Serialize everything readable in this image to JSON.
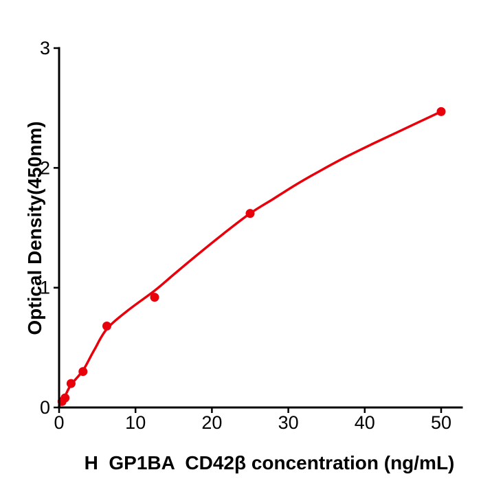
{
  "figure": {
    "background": "#ffffff",
    "axis_color": "#000000",
    "accent_red": "#e8000b"
  },
  "chart_data": {
    "type": "scatter",
    "title": "",
    "xlabel": "H  GP1BA  CD42β concentration (ng/mL)",
    "ylabel": "Optical Density(450nm)",
    "xlim": [
      0,
      52.7
    ],
    "ylim": [
      0,
      3
    ],
    "x_ticks": [
      0,
      10,
      20,
      30,
      40,
      50
    ],
    "y_ticks": [
      0,
      1,
      2,
      3
    ],
    "grid": false,
    "legend_position": "none",
    "series": [
      {
        "name": "standard-data-points",
        "type": "scatter",
        "color": "#e8000b",
        "x": [
          0.39,
          0.78,
          1.5625,
          3.125,
          6.25,
          12.5,
          25,
          50
        ],
        "y": [
          0.05,
          0.08,
          0.2,
          0.3,
          0.68,
          0.92,
          1.62,
          2.47
        ]
      },
      {
        "name": "fitted-curve",
        "type": "line",
        "color": "#e8000b",
        "points": [
          [
            0,
            0.01
          ],
          [
            0.39,
            0.05
          ],
          [
            0.78,
            0.095
          ],
          [
            1.5625,
            0.19
          ],
          [
            3.125,
            0.31
          ],
          [
            4.6,
            0.48
          ],
          [
            6.25,
            0.655
          ],
          [
            9,
            0.81
          ],
          [
            12.5,
            0.975
          ],
          [
            15,
            1.11
          ],
          [
            18,
            1.27
          ],
          [
            21.5,
            1.45
          ],
          [
            25,
            1.62
          ],
          [
            28,
            1.74
          ],
          [
            31,
            1.86
          ],
          [
            34,
            1.97
          ],
          [
            37.5,
            2.09
          ],
          [
            41,
            2.2
          ],
          [
            44,
            2.29
          ],
          [
            47,
            2.38
          ],
          [
            50,
            2.47
          ]
        ]
      }
    ]
  }
}
